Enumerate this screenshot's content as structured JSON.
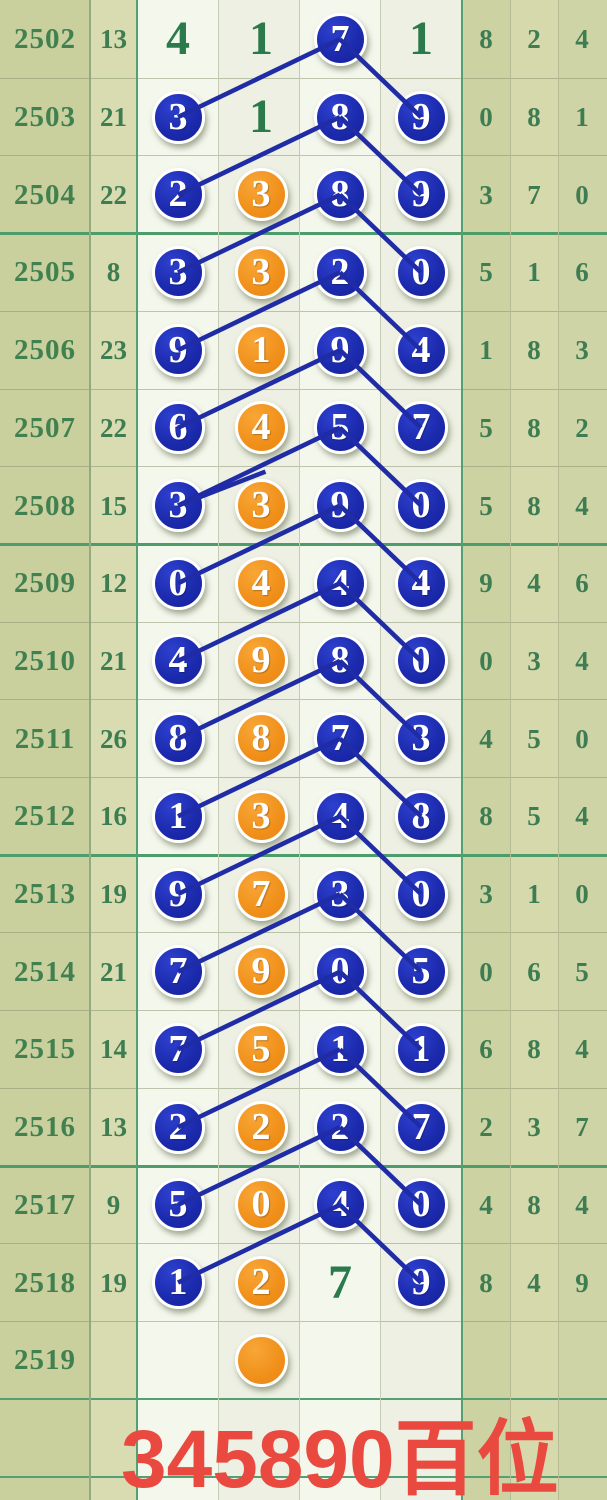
{
  "chart_data": {
    "type": "table",
    "caption": "345890百位",
    "rows": [
      {
        "period": "2502",
        "sum": "13",
        "cells": [
          {
            "v": "4",
            "s": "plain"
          },
          {
            "v": "1",
            "s": "plain"
          },
          {
            "v": "7",
            "s": "blue"
          },
          {
            "v": "1",
            "s": "plain"
          }
        ],
        "right": [
          "8",
          "2",
          "4"
        ]
      },
      {
        "period": "2503",
        "sum": "21",
        "cells": [
          {
            "v": "3",
            "s": "blue"
          },
          {
            "v": "1",
            "s": "plain"
          },
          {
            "v": "8",
            "s": "blue"
          },
          {
            "v": "9",
            "s": "blue"
          }
        ],
        "right": [
          "0",
          "8",
          "1"
        ]
      },
      {
        "period": "2504",
        "sum": "22",
        "cells": [
          {
            "v": "2",
            "s": "blue"
          },
          {
            "v": "3",
            "s": "orange"
          },
          {
            "v": "8",
            "s": "blue"
          },
          {
            "v": "9",
            "s": "blue"
          }
        ],
        "right": [
          "3",
          "7",
          "0"
        ]
      },
      {
        "period": "2505",
        "sum": "8",
        "cells": [
          {
            "v": "3",
            "s": "blue"
          },
          {
            "v": "3",
            "s": "orange"
          },
          {
            "v": "2",
            "s": "blue"
          },
          {
            "v": "0",
            "s": "blue"
          }
        ],
        "right": [
          "5",
          "1",
          "6"
        ]
      },
      {
        "period": "2506",
        "sum": "23",
        "cells": [
          {
            "v": "9",
            "s": "blue"
          },
          {
            "v": "1",
            "s": "orange"
          },
          {
            "v": "9",
            "s": "blue"
          },
          {
            "v": "4",
            "s": "blue"
          }
        ],
        "right": [
          "1",
          "8",
          "3"
        ]
      },
      {
        "period": "2507",
        "sum": "22",
        "cells": [
          {
            "v": "6",
            "s": "blue"
          },
          {
            "v": "4",
            "s": "orange"
          },
          {
            "v": "5",
            "s": "blue"
          },
          {
            "v": "7",
            "s": "blue"
          }
        ],
        "right": [
          "5",
          "8",
          "2"
        ]
      },
      {
        "period": "2508",
        "sum": "15",
        "cells": [
          {
            "v": "3",
            "s": "blue"
          },
          {
            "v": "3",
            "s": "orange"
          },
          {
            "v": "9",
            "s": "blue"
          },
          {
            "v": "0",
            "s": "blue"
          }
        ],
        "right": [
          "5",
          "8",
          "4"
        ]
      },
      {
        "period": "2509",
        "sum": "12",
        "cells": [
          {
            "v": "0",
            "s": "blue"
          },
          {
            "v": "4",
            "s": "orange"
          },
          {
            "v": "4",
            "s": "blue"
          },
          {
            "v": "4",
            "s": "blue"
          }
        ],
        "right": [
          "9",
          "4",
          "6"
        ]
      },
      {
        "period": "2510",
        "sum": "21",
        "cells": [
          {
            "v": "4",
            "s": "blue"
          },
          {
            "v": "9",
            "s": "orange"
          },
          {
            "v": "8",
            "s": "blue"
          },
          {
            "v": "0",
            "s": "blue"
          }
        ],
        "right": [
          "0",
          "3",
          "4"
        ]
      },
      {
        "period": "2511",
        "sum": "26",
        "cells": [
          {
            "v": "8",
            "s": "blue"
          },
          {
            "v": "8",
            "s": "orange"
          },
          {
            "v": "7",
            "s": "blue"
          },
          {
            "v": "3",
            "s": "blue"
          }
        ],
        "right": [
          "4",
          "5",
          "0"
        ]
      },
      {
        "period": "2512",
        "sum": "16",
        "cells": [
          {
            "v": "1",
            "s": "blue"
          },
          {
            "v": "3",
            "s": "orange"
          },
          {
            "v": "4",
            "s": "blue"
          },
          {
            "v": "8",
            "s": "blue"
          }
        ],
        "right": [
          "8",
          "5",
          "4"
        ]
      },
      {
        "period": "2513",
        "sum": "19",
        "cells": [
          {
            "v": "9",
            "s": "blue"
          },
          {
            "v": "7",
            "s": "orange"
          },
          {
            "v": "3",
            "s": "blue"
          },
          {
            "v": "0",
            "s": "blue"
          }
        ],
        "right": [
          "3",
          "1",
          "0"
        ]
      },
      {
        "period": "2514",
        "sum": "21",
        "cells": [
          {
            "v": "7",
            "s": "blue"
          },
          {
            "v": "9",
            "s": "orange"
          },
          {
            "v": "0",
            "s": "blue"
          },
          {
            "v": "5",
            "s": "blue"
          }
        ],
        "right": [
          "0",
          "6",
          "5"
        ]
      },
      {
        "period": "2515",
        "sum": "14",
        "cells": [
          {
            "v": "7",
            "s": "blue"
          },
          {
            "v": "5",
            "s": "orange"
          },
          {
            "v": "1",
            "s": "blue"
          },
          {
            "v": "1",
            "s": "blue"
          }
        ],
        "right": [
          "6",
          "8",
          "4"
        ]
      },
      {
        "period": "2516",
        "sum": "13",
        "cells": [
          {
            "v": "2",
            "s": "blue"
          },
          {
            "v": "2",
            "s": "orange"
          },
          {
            "v": "2",
            "s": "blue"
          },
          {
            "v": "7",
            "s": "blue"
          }
        ],
        "right": [
          "2",
          "3",
          "7"
        ]
      },
      {
        "period": "2517",
        "sum": "9",
        "cells": [
          {
            "v": "5",
            "s": "blue"
          },
          {
            "v": "0",
            "s": "orange"
          },
          {
            "v": "4",
            "s": "blue"
          },
          {
            "v": "0",
            "s": "blue"
          }
        ],
        "right": [
          "4",
          "8",
          "4"
        ]
      },
      {
        "period": "2518",
        "sum": "19",
        "cells": [
          {
            "v": "1",
            "s": "blue"
          },
          {
            "v": "2",
            "s": "orange"
          },
          {
            "v": "7",
            "s": "plain"
          },
          {
            "v": "9",
            "s": "blue"
          }
        ],
        "right": [
          "8",
          "4",
          "9"
        ]
      },
      {
        "period": "2519",
        "sum": "",
        "cells": [
          null,
          {
            "v": "",
            "s": "orange"
          },
          null,
          null
        ],
        "right": [
          "",
          "",
          ""
        ]
      }
    ],
    "links": [
      {
        "f": [
          0,
          2
        ],
        "t": [
          1,
          0
        ]
      },
      {
        "f": [
          0,
          2
        ],
        "t": [
          1,
          3
        ]
      },
      {
        "f": [
          1,
          2
        ],
        "t": [
          2,
          0
        ]
      },
      {
        "f": [
          1,
          2
        ],
        "t": [
          2,
          3
        ]
      },
      {
        "f": [
          2,
          2
        ],
        "t": [
          3,
          0
        ]
      },
      {
        "f": [
          2,
          2
        ],
        "t": [
          3,
          3
        ]
      },
      {
        "f": [
          3,
          2
        ],
        "t": [
          4,
          0
        ]
      },
      {
        "f": [
          3,
          2
        ],
        "t": [
          4,
          3
        ]
      },
      {
        "f": [
          4,
          2
        ],
        "t": [
          5,
          0
        ]
      },
      {
        "f": [
          4,
          2
        ],
        "t": [
          5,
          3
        ]
      },
      {
        "f": [
          5,
          2
        ],
        "t": [
          6,
          0
        ],
        "d": true
      },
      {
        "f": [
          5,
          2
        ],
        "t": [
          6,
          3
        ]
      },
      {
        "f": [
          6,
          2
        ],
        "t": [
          7,
          0
        ]
      },
      {
        "f": [
          6,
          2
        ],
        "t": [
          7,
          3
        ]
      },
      {
        "f": [
          7,
          2
        ],
        "t": [
          8,
          0
        ]
      },
      {
        "f": [
          7,
          2
        ],
        "t": [
          8,
          3
        ]
      },
      {
        "f": [
          8,
          2
        ],
        "t": [
          9,
          0
        ]
      },
      {
        "f": [
          8,
          2
        ],
        "t": [
          9,
          3
        ]
      },
      {
        "f": [
          9,
          2
        ],
        "t": [
          10,
          0
        ]
      },
      {
        "f": [
          9,
          2
        ],
        "t": [
          10,
          3
        ]
      },
      {
        "f": [
          10,
          2
        ],
        "t": [
          11,
          0
        ]
      },
      {
        "f": [
          10,
          2
        ],
        "t": [
          11,
          3
        ]
      },
      {
        "f": [
          11,
          2
        ],
        "t": [
          12,
          0
        ]
      },
      {
        "f": [
          11,
          2
        ],
        "t": [
          12,
          3
        ]
      },
      {
        "f": [
          12,
          2
        ],
        "t": [
          13,
          0
        ]
      },
      {
        "f": [
          12,
          2
        ],
        "t": [
          13,
          3
        ]
      },
      {
        "f": [
          13,
          2
        ],
        "t": [
          14,
          0
        ]
      },
      {
        "f": [
          13,
          2
        ],
        "t": [
          14,
          3
        ]
      },
      {
        "f": [
          14,
          2
        ],
        "t": [
          15,
          0
        ]
      },
      {
        "f": [
          14,
          2
        ],
        "t": [
          15,
          3
        ]
      },
      {
        "f": [
          15,
          2
        ],
        "t": [
          16,
          0
        ]
      },
      {
        "f": [
          15,
          2
        ],
        "t": [
          16,
          3
        ]
      }
    ]
  },
  "colors": {
    "ball_blue": "#1c2bae",
    "ball_orange": "#f0901a",
    "trend_line": "#1f2ca5",
    "caption_red": "#e9493f",
    "text_green": "#3e7d52",
    "digit_green": "#2b7a4b",
    "grid_green": "#55a072",
    "divider_green": "#4d9c6c",
    "bg_tan": "#cacf9e",
    "bg_light": "#f4f7ec"
  }
}
